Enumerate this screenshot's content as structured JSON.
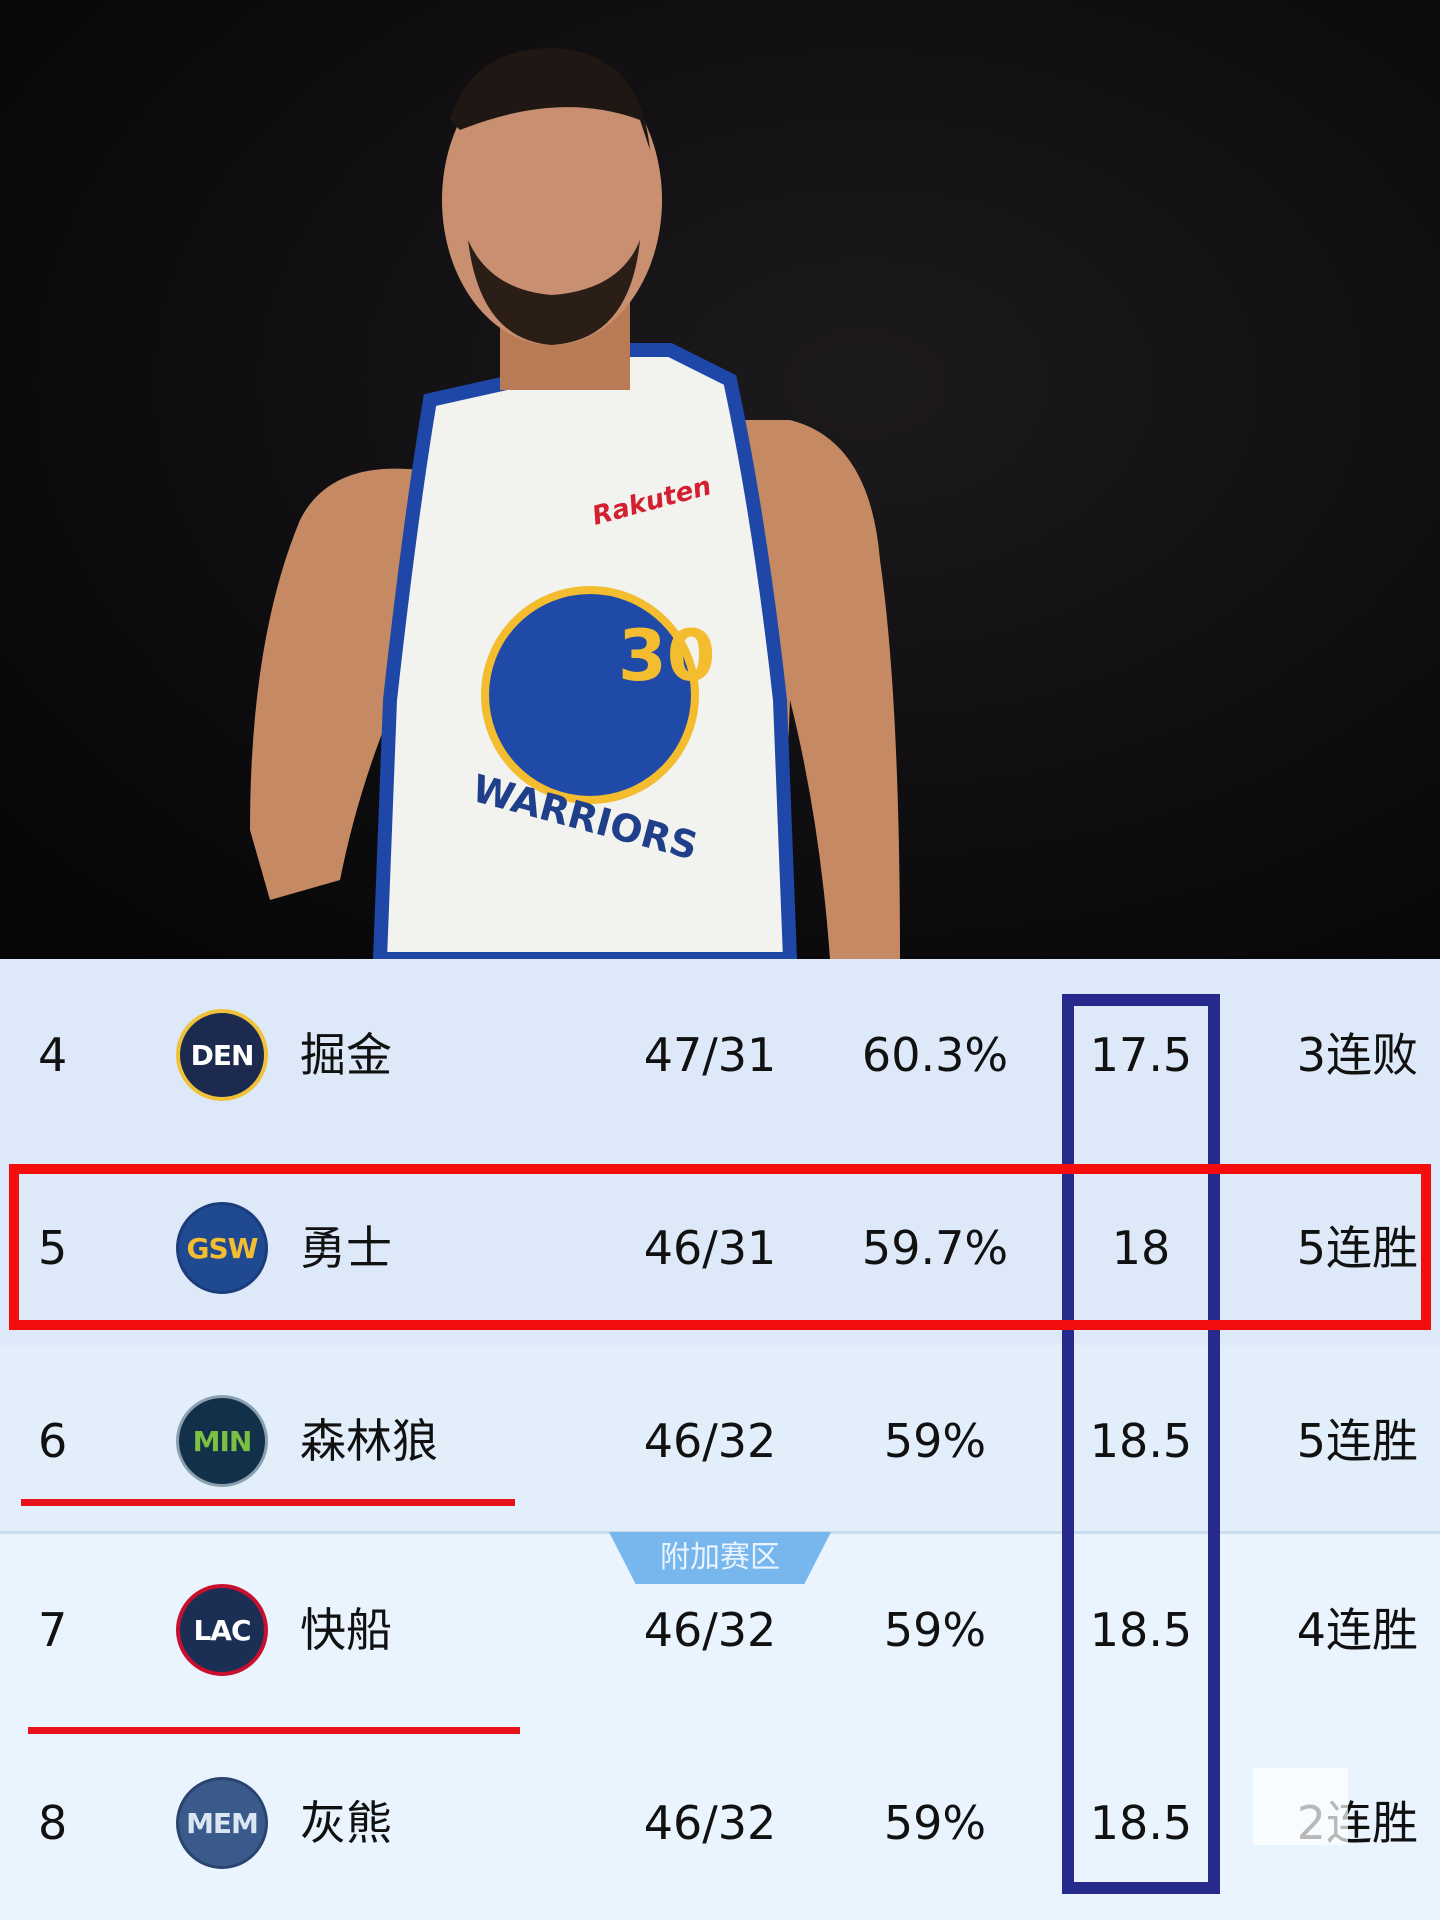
{
  "photo": {
    "jersey_number": "30",
    "jersey_sponsor": "Rakuten",
    "jersey_text": "WARRIORS"
  },
  "standings": {
    "rows": [
      {
        "rank": "4",
        "logo": "DEN",
        "team": "掘金",
        "record": "47/31",
        "pct": "60.3%",
        "gb": "17.5",
        "streak": "3连败",
        "logo_bg": "#1d2a4f",
        "logo_fg": "#ffffff",
        "logo_border": "#f0c23a"
      },
      {
        "rank": "5",
        "logo": "GSW",
        "team": "勇士",
        "record": "46/31",
        "pct": "59.7%",
        "gb": "18",
        "streak": "5连胜",
        "logo_bg": "#1f4a92",
        "logo_fg": "#f4bd2f",
        "logo_border": "#1a3c7a"
      },
      {
        "rank": "6",
        "logo": "MIN",
        "team": "森林狼",
        "record": "46/32",
        "pct": "59%",
        "gb": "18.5",
        "streak": "5连胜",
        "logo_bg": "#12304a",
        "logo_fg": "#7ac143",
        "logo_border": "#8aa0b0"
      },
      {
        "rank": "7",
        "logo": "LAC",
        "team": "快船",
        "record": "46/32",
        "pct": "59%",
        "gb": "18.5",
        "streak": "4连胜",
        "logo_bg": "#1b2f55",
        "logo_fg": "#ffffff",
        "logo_border": "#c8102e"
      },
      {
        "rank": "8",
        "logo": "MEM",
        "team": "灰熊",
        "record": "46/32",
        "pct": "59%",
        "gb": "18.5",
        "streak": "2连胜",
        "logo_bg": "#3a5a8c",
        "logo_fg": "#dbe6f3",
        "logo_border": "#2a4470"
      }
    ],
    "play_in_label": "附加赛区"
  },
  "annotations": {
    "highlight_color": "#f40d0d",
    "column_box_color": "#262a8c"
  }
}
